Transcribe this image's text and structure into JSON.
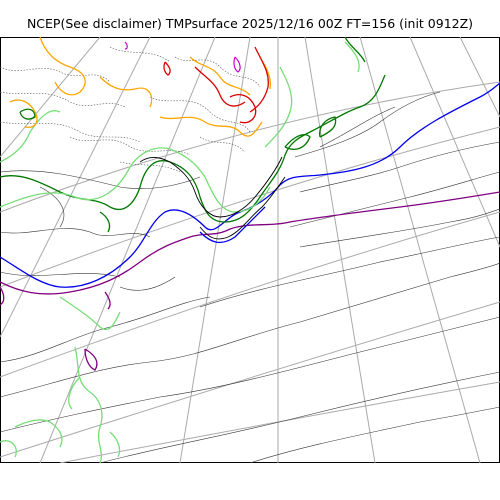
{
  "title": "NCEP(See disclaimer) TMPsurface 2025/12/16 00Z FT=156 (init 0912Z)",
  "map": {
    "field": "TMPsurface",
    "projection": "polar-stereographic",
    "graticule_color": "#aaaaaa",
    "coastline_color": "#000000",
    "contour_colors": {
      "thin": "#333333",
      "dotted": "#555555",
      "purple": "#800080",
      "blue": "#0000ee",
      "dark_green": "#007700",
      "light_green": "#77dd77",
      "orange": "#ffa500",
      "red": "#dd0000",
      "magenta": "#cc00cc"
    }
  }
}
